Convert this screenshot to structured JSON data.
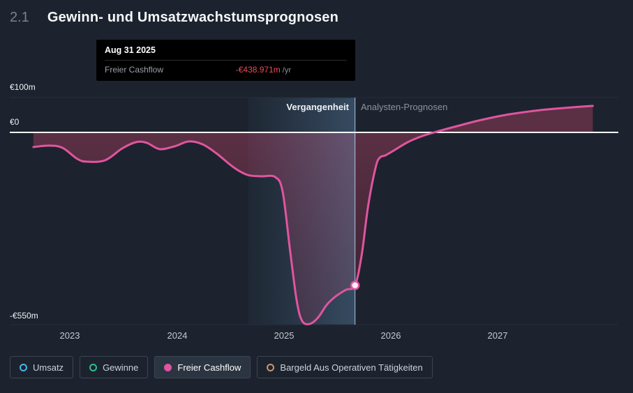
{
  "header": {
    "section_number": "2.1",
    "title": "Gewinn- und Umsatzwachstumsprognosen"
  },
  "tooltip": {
    "date": "Aug 31 2025",
    "series": "Freier Cashflow",
    "value": "-€438.971m",
    "unit": "/yr"
  },
  "chart_labels": {
    "past": "Vergangenheit",
    "forecast": "Analysten-Prognosen"
  },
  "y_axis": {
    "top": "€100m",
    "zero": "€0",
    "bottom": "-€550m"
  },
  "x_axis": [
    "2023",
    "2024",
    "2025",
    "2026",
    "2027"
  ],
  "legend": [
    {
      "label": "Umsatz",
      "color": "#49b6e9",
      "active": false
    },
    {
      "label": "Gewinne",
      "color": "#2fbf8f",
      "active": false
    },
    {
      "label": "Freier Cashflow",
      "color": "#e0559f",
      "active": true
    },
    {
      "label": "Bargeld Aus Operativen Tätigkeiten",
      "color": "#c49a6c",
      "active": false
    }
  ],
  "colors": {
    "background": "#1c232e",
    "line_pink": "#e0559f",
    "zero_line": "#ffffff",
    "negative_value": "#ef4a5a",
    "forecast_band": "#7fb9ea"
  },
  "chart_data": {
    "type": "line",
    "title": "Gewinn- und Umsatzwachstumsprognosen",
    "xlabel": "",
    "ylabel": "€m",
    "ylim": [
      -550,
      100
    ],
    "x_ticks": [
      2023,
      2024,
      2025,
      2026,
      2027
    ],
    "y_tick_values": [
      100,
      0,
      -550
    ],
    "y_tick_labels": [
      "€100m",
      "€0",
      "-€550m"
    ],
    "grid": false,
    "legend_position": "bottom",
    "highlight_start": 2024.667,
    "divider_x": 2025.667,
    "divider_label_date": "Aug 31 2025",
    "marker": {
      "x": 2025.667,
      "y": -438.971
    },
    "series": [
      {
        "name": "Freier Cashflow",
        "color": "#e0559f",
        "unit": "€m/yr",
        "points": [
          [
            2022.66,
            -42
          ],
          [
            2022.8,
            -38
          ],
          [
            2022.93,
            -44
          ],
          [
            2023.07,
            -76
          ],
          [
            2023.16,
            -84
          ],
          [
            2023.33,
            -80
          ],
          [
            2023.49,
            -46
          ],
          [
            2023.62,
            -28
          ],
          [
            2023.72,
            -30
          ],
          [
            2023.84,
            -48
          ],
          [
            2023.98,
            -40
          ],
          [
            2024.11,
            -26
          ],
          [
            2024.24,
            -34
          ],
          [
            2024.37,
            -60
          ],
          [
            2024.53,
            -100
          ],
          [
            2024.66,
            -122
          ],
          [
            2024.79,
            -126
          ],
          [
            2024.92,
            -128
          ],
          [
            2024.99,
            -170
          ],
          [
            2025.06,
            -340
          ],
          [
            2025.12,
            -480
          ],
          [
            2025.17,
            -540
          ],
          [
            2025.24,
            -550
          ],
          [
            2025.32,
            -532
          ],
          [
            2025.4,
            -496
          ],
          [
            2025.48,
            -472
          ],
          [
            2025.58,
            -452
          ],
          [
            2025.667,
            -438.971
          ],
          [
            2025.73,
            -350
          ],
          [
            2025.79,
            -210
          ],
          [
            2025.86,
            -100
          ],
          [
            2025.9,
            -72
          ],
          [
            2025.95,
            -66
          ],
          [
            2026.03,
            -52
          ],
          [
            2026.16,
            -28
          ],
          [
            2026.3,
            -10
          ],
          [
            2026.43,
            2
          ],
          [
            2026.62,
            18
          ],
          [
            2026.85,
            36
          ],
          [
            2027.11,
            52
          ],
          [
            2027.4,
            64
          ],
          [
            2027.7,
            72
          ],
          [
            2027.89,
            76
          ]
        ]
      }
    ]
  }
}
